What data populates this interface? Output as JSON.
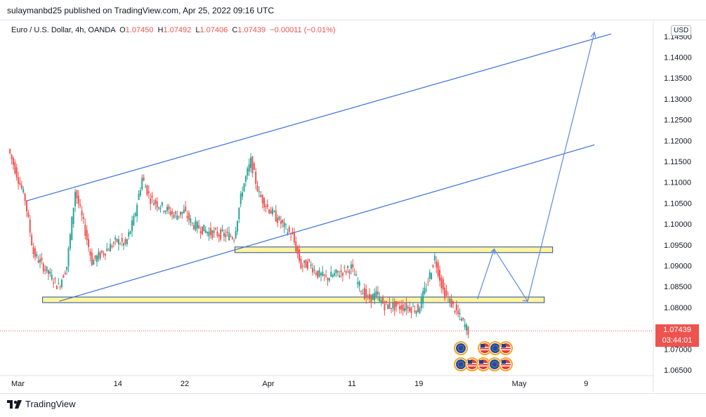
{
  "header": {
    "publish_info": "sulaymanbd25 published on TradingView.com, Apr 25, 2022 09:16 UTC"
  },
  "legend": {
    "symbol": "Euro / U.S. Dollar, 4h, OANDA",
    "open_label": "O",
    "open": "1.07450",
    "high_label": "H",
    "high": "1.07492",
    "low_label": "L",
    "low": "1.07406",
    "close_label": "C",
    "close": "1.07439",
    "change": "−0.00011 (−0.01%)"
  },
  "price_axis": {
    "currency": "USD"
  },
  "last_price": {
    "value": "1.07439",
    "countdown": "03:44:01"
  },
  "footer": {
    "brand": "TradingView"
  },
  "colors": {
    "up": "#26a69a",
    "down": "#ef5350",
    "drawing": "#3a6fd8",
    "zone_fill": "#fff59d",
    "zone_stroke": "#2b4a9a"
  },
  "event_icons": [
    "eu-flag-icon",
    "us-flag-icon",
    "eu-flag-icon",
    "eu-flag-icon",
    "us-flag-icon"
  ],
  "chart_data": {
    "type": "candlestick",
    "title": "Euro / U.S. Dollar, 4h, OANDA",
    "x_tick_labels": [
      "Mar",
      "14",
      "22",
      "Apr",
      "11",
      "19",
      "May",
      "9"
    ],
    "y_tick_labels": [
      "1.06500",
      "1.07000",
      "1.08000",
      "1.08500",
      "1.09000",
      "1.09500",
      "1.10000",
      "1.10500",
      "1.11000",
      "1.11500",
      "1.12000",
      "1.12500",
      "1.13000",
      "1.13500",
      "1.14000",
      "1.14500"
    ],
    "ylim": [
      1.0645,
      1.1475
    ],
    "xlim": [
      "2022-03-01",
      "2022-05-15"
    ],
    "grid": false,
    "series": [
      {
        "path": [
          [
            "2022-03-01",
            1.118
          ],
          [
            "2022-03-02",
            1.112
          ],
          [
            "2022-03-03",
            1.106
          ],
          [
            "2022-03-04",
            1.093
          ],
          [
            "2022-03-07",
            1.085
          ],
          [
            "2022-03-08",
            1.09
          ],
          [
            "2022-03-09",
            1.108
          ],
          [
            "2022-03-10",
            1.1
          ],
          [
            "2022-03-11",
            1.091
          ],
          [
            "2022-03-14",
            1.096
          ],
          [
            "2022-03-15",
            1.095
          ],
          [
            "2022-03-16",
            1.101
          ],
          [
            "2022-03-17",
            1.111
          ],
          [
            "2022-03-18",
            1.106
          ],
          [
            "2022-03-21",
            1.102
          ],
          [
            "2022-03-22",
            1.103
          ],
          [
            "2022-03-23",
            1.1
          ],
          [
            "2022-03-24",
            1.099
          ],
          [
            "2022-03-25",
            1.098
          ],
          [
            "2022-03-28",
            1.097
          ],
          [
            "2022-03-29",
            1.1085
          ],
          [
            "2022-03-30",
            1.115
          ],
          [
            "2022-03-31",
            1.107
          ],
          [
            "2022-04-01",
            1.104
          ],
          [
            "2022-04-04",
            1.097
          ],
          [
            "2022-04-05",
            1.09
          ],
          [
            "2022-04-06",
            1.0905
          ],
          [
            "2022-04-07",
            1.088
          ],
          [
            "2022-04-08",
            1.087
          ],
          [
            "2022-04-11",
            1.0895
          ],
          [
            "2022-04-12",
            1.085
          ],
          [
            "2022-04-13",
            1.082
          ],
          [
            "2022-04-14",
            1.083
          ],
          [
            "2022-04-15",
            1.0805
          ],
          [
            "2022-04-18",
            1.08
          ],
          [
            "2022-04-19",
            1.0795
          ],
          [
            "2022-04-20",
            1.085
          ],
          [
            "2022-04-21",
            1.092
          ],
          [
            "2022-04-22",
            1.084
          ],
          [
            "2022-04-25",
            1.0744
          ]
        ]
      }
    ],
    "drawings": {
      "upper_channel_line": [
        [
          "2022-03-03",
          1.1055
        ],
        [
          "2022-05-12",
          1.1456
        ]
      ],
      "lower_channel_line": [
        [
          "2022-03-07",
          1.0815
        ],
        [
          "2022-05-10",
          1.119
        ]
      ],
      "upper_zone": {
        "from": "2022-03-28",
        "to": "2022-05-05",
        "y_range": [
          1.0935,
          1.0945
        ]
      },
      "lower_zone": {
        "from": "2022-03-05",
        "to": "2022-05-04",
        "y_range": [
          1.0815,
          1.0825
        ]
      },
      "projection_arrow": [
        [
          "2022-04-26",
          1.082
        ],
        [
          "2022-04-28",
          1.094
        ],
        [
          "2022-05-02",
          1.0815
        ],
        [
          "2022-05-10",
          1.146
        ]
      ]
    }
  }
}
